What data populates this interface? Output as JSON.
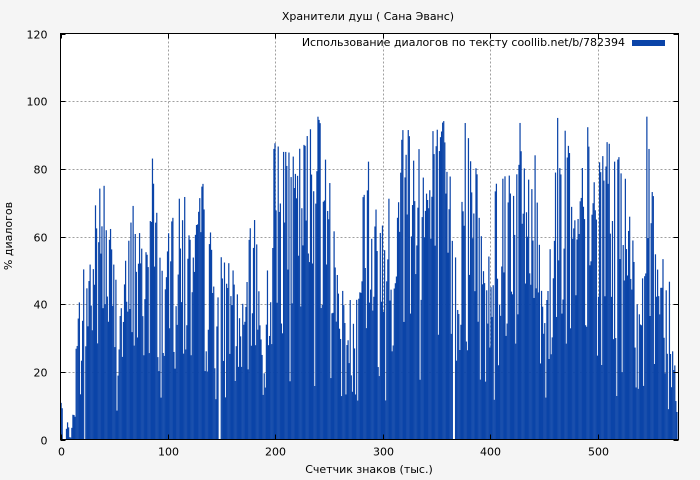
{
  "chart_data": {
    "type": "bar",
    "title": "Хранители душ ( Сана Эванс)",
    "xlabel": "Счетчик знаков (тыс.)",
    "ylabel": "% диалогов",
    "xlim": [
      0,
      575
    ],
    "ylim": [
      0,
      120
    ],
    "xticks": [
      0,
      100,
      200,
      300,
      400,
      500
    ],
    "yticks": [
      0,
      20,
      40,
      60,
      80,
      100,
      120
    ],
    "grid": true,
    "legend_position": "top-right",
    "series": [
      {
        "name": "Использование диалогов по тексту coollib.net/b/782394",
        "color": "#0b44a8",
        "bin_width": 1,
        "description_peaks": [
          14,
          0,
          55,
          62,
          80,
          60,
          45,
          70,
          62,
          84,
          55,
          65,
          75,
          60,
          76,
          60,
          55,
          50,
          40,
          72,
          30,
          88,
          85,
          85,
          92,
          99,
          90,
          65,
          40,
          45,
          90,
          70,
          72,
          70,
          97,
          80,
          95,
          90,
          98,
          60,
          95,
          90,
          50,
          75,
          90,
          95,
          92,
          85,
          45,
          98,
          90,
          70,
          95,
          80,
          88,
          85,
          75,
          45,
          100,
          65,
          60,
          10
        ]
      }
    ]
  }
}
